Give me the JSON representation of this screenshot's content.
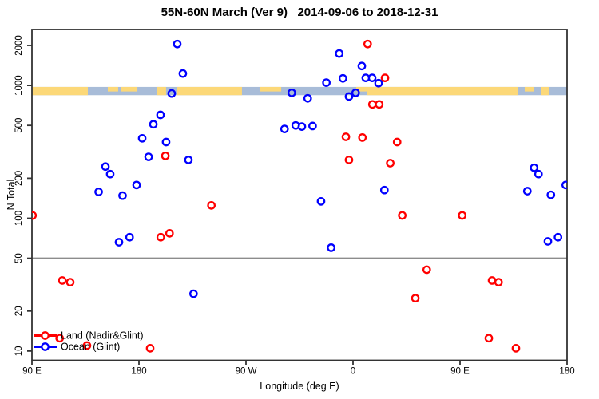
{
  "chart_data": {
    "type": "scatter",
    "title": "55N-60N March (Ver 9)   2014-09-06 to 2018-12-31",
    "xlabel": "Longitude (deg E)",
    "ylabel": "N Total",
    "x_axis": {
      "range_deg": [
        0,
        450
      ],
      "note": "longitude axis wraps: left edge 90E eastward through 180, 90W, 0, 90E to 180",
      "ticks": [
        {
          "deg": 0,
          "label": "90 E"
        },
        {
          "deg": 90,
          "label": "180"
        },
        {
          "deg": 180,
          "label": "90 W"
        },
        {
          "deg": 270,
          "label": "0"
        },
        {
          "deg": 360,
          "label": "90 E"
        },
        {
          "deg": 450,
          "label": "180"
        }
      ]
    },
    "y_axis": {
      "scale": "log",
      "range": [
        8.5,
        2640
      ],
      "ticks": [
        "10",
        "20",
        "50",
        "100",
        "200",
        "500",
        "1000",
        "2000"
      ]
    },
    "reference_line": {
      "value": 50,
      "color": "#8C8C8C"
    },
    "map_band": {
      "description": "land/ocean map strip at 55N-60N latitude",
      "value_top": 975,
      "value_bottom": 845,
      "land_color": "#FCD878",
      "ocean_color": "#A8BCD8",
      "land_segments_deg": [
        [
          0,
          47
        ],
        [
          104.8,
          112.8
        ],
        [
          122.2,
          176.6
        ],
        [
          282.1,
          408.4
        ],
        [
          428.5,
          435.2
        ]
      ],
      "land_patch_segments_deg": [
        [
          63.8,
          72.5
        ],
        [
          75.2,
          88.7
        ],
        [
          191.4,
          209.6
        ],
        [
          272.7,
          282.1
        ],
        [
          414.4,
          421.8
        ]
      ]
    },
    "series": [
      {
        "name": "Land (Nadir&Glint)",
        "color": "#FF0000",
        "points": [
          [
            0.5,
            105
          ],
          [
            23.3,
            12.5
          ],
          [
            25.5,
            34
          ],
          [
            32.2,
            33
          ],
          [
            46.3,
            11
          ],
          [
            99.4,
            10.5
          ],
          [
            108.3,
            72
          ],
          [
            112.2,
            295
          ],
          [
            115.7,
            77
          ],
          [
            150.9,
            125
          ],
          [
            264.0,
            410
          ],
          [
            266.6,
            275
          ],
          [
            277.9,
            405
          ],
          [
            282.3,
            2050
          ],
          [
            286.3,
            720
          ],
          [
            292.0,
            720
          ],
          [
            296.9,
            1140
          ],
          [
            301.3,
            260
          ],
          [
            307.1,
            375
          ],
          [
            311.4,
            105
          ],
          [
            322.4,
            25
          ],
          [
            332.0,
            41
          ],
          [
            361.8,
            105
          ],
          [
            384.2,
            12.5
          ],
          [
            386.9,
            34
          ],
          [
            392.4,
            33
          ],
          [
            407.0,
            10.5
          ]
        ]
      },
      {
        "name": "Ocean (Glint)",
        "color": "#0000FF",
        "points": [
          [
            56.1,
            158
          ],
          [
            61.8,
            245
          ],
          [
            65.8,
            215
          ],
          [
            73.2,
            66
          ],
          [
            76.2,
            148
          ],
          [
            82.1,
            72
          ],
          [
            88.0,
            178
          ],
          [
            92.7,
            400
          ],
          [
            98.1,
            290
          ],
          [
            102.1,
            510
          ],
          [
            108.1,
            600
          ],
          [
            112.8,
            375
          ],
          [
            117.5,
            870
          ],
          [
            122.2,
            2050
          ],
          [
            126.9,
            1230
          ],
          [
            131.6,
            275
          ],
          [
            135.9,
            27
          ],
          [
            212.4,
            470
          ],
          [
            218.5,
            880
          ],
          [
            221.8,
            500
          ],
          [
            227.0,
            490
          ],
          [
            231.9,
            800
          ],
          [
            236.0,
            495
          ],
          [
            243.1,
            134
          ],
          [
            247.6,
            1050
          ],
          [
            251.6,
            60
          ],
          [
            258.4,
            1740
          ],
          [
            261.5,
            1130
          ],
          [
            266.6,
            825
          ],
          [
            272.2,
            880
          ],
          [
            277.4,
            1400
          ],
          [
            280.7,
            1140
          ],
          [
            286.1,
            1140
          ],
          [
            291.5,
            1040
          ],
          [
            296.4,
            163
          ],
          [
            416.6,
            160
          ],
          [
            422.3,
            240
          ],
          [
            426.0,
            215
          ],
          [
            433.9,
            67
          ],
          [
            436.4,
            150
          ],
          [
            442.4,
            72
          ],
          [
            448.9,
            178
          ]
        ]
      }
    ],
    "legend": {
      "position": "bottom-left",
      "entries": [
        "Land (Nadir&Glint)",
        "Ocean (Glint)"
      ]
    }
  }
}
